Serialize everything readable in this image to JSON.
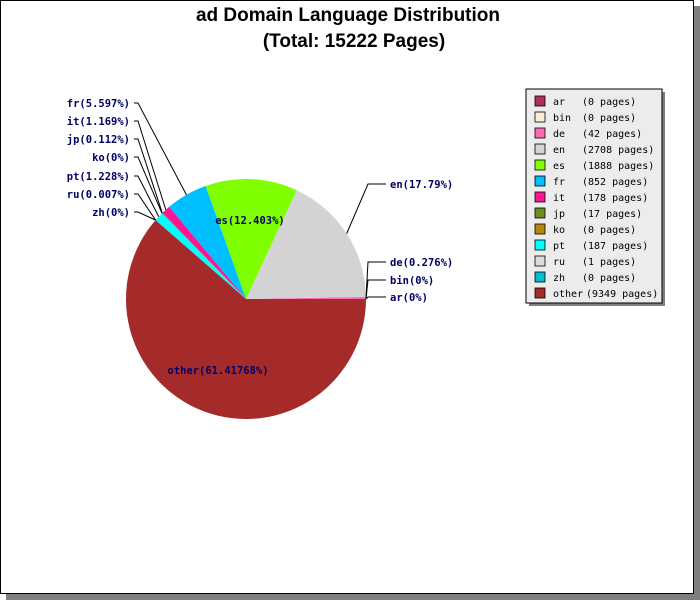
{
  "chart_data": {
    "type": "pie",
    "title": "ad Domain Language Distribution",
    "subtitle": "(Total: 15222 Pages)",
    "slices": [
      {
        "key": "ar",
        "label": "ar(0%)",
        "pct": 0,
        "legend": "(0 pages)",
        "color": "#b03060"
      },
      {
        "key": "bin",
        "label": "bin(0%)",
        "pct": 0,
        "legend": "(0 pages)",
        "color": "#faebd7"
      },
      {
        "key": "de",
        "label": "de(0.276%)",
        "pct": 0.276,
        "legend": "(42 pages)",
        "color": "#ff69b4"
      },
      {
        "key": "en",
        "label": "en(17.79%)",
        "pct": 17.79,
        "legend": "(2708 pages)",
        "color": "#d3d3d3"
      },
      {
        "key": "es",
        "label": "es(12.403%)",
        "pct": 12.403,
        "legend": "(1888 pages)",
        "color": "#7fff00"
      },
      {
        "key": "fr",
        "label": "fr(5.597%)",
        "pct": 5.597,
        "legend": "(852 pages)",
        "color": "#00bfff"
      },
      {
        "key": "it",
        "label": "it(1.169%)",
        "pct": 1.169,
        "legend": "(178 pages)",
        "color": "#ff1493"
      },
      {
        "key": "jp",
        "label": "jp(0.112%)",
        "pct": 0.112,
        "legend": "(17 pages)",
        "color": "#6b8e23"
      },
      {
        "key": "ko",
        "label": "ko(0%)",
        "pct": 0,
        "legend": "(0 pages)",
        "color": "#b8860b"
      },
      {
        "key": "pt",
        "label": "pt(1.228%)",
        "pct": 1.228,
        "legend": "(187 pages)",
        "color": "#00ffff"
      },
      {
        "key": "ru",
        "label": "ru(0.007%)",
        "pct": 0.007,
        "legend": "(1 pages)",
        "color": "#dcdcdc"
      },
      {
        "key": "zh",
        "label": "zh(0%)",
        "pct": 0,
        "legend": "(0 pages)",
        "color": "#00bcd4"
      },
      {
        "key": "other",
        "label": "other(61.41768%)",
        "pct": 61.41768,
        "legend": "(9349 pages)",
        "color": "#a52a2a"
      }
    ],
    "legend_position": "right"
  }
}
